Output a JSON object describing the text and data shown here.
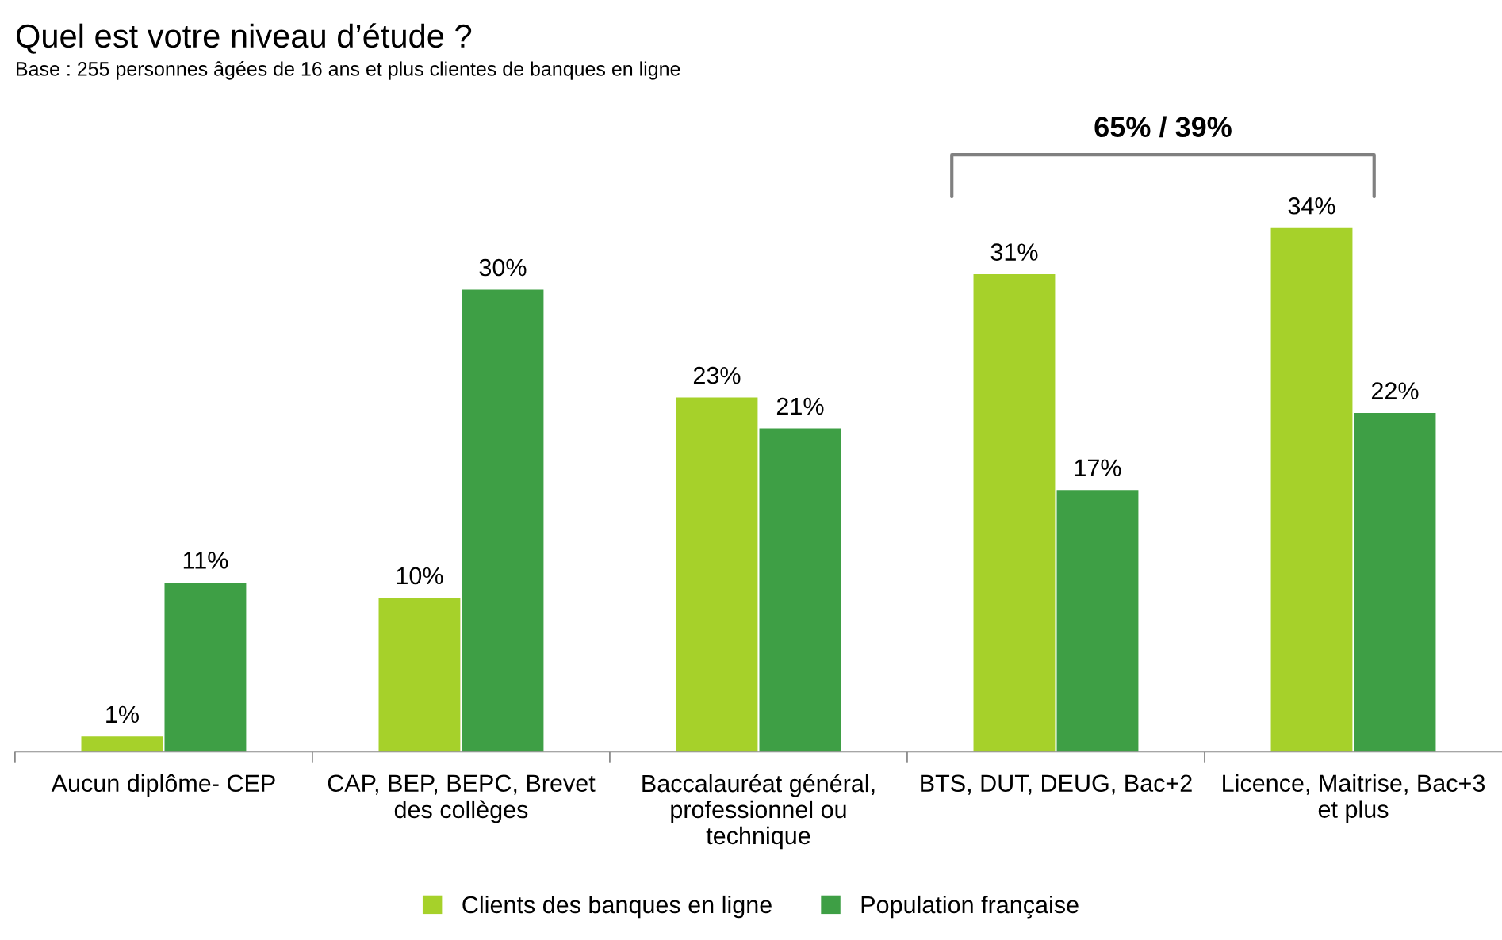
{
  "chart_data": {
    "type": "bar",
    "title": "Quel est votre niveau d’étude ?",
    "subtitle": "Base : 255 personnes âgées de 16 ans et plus clientes de banques en ligne",
    "categories": [
      "Aucun diplôme- CEP",
      "CAP, BEP, BEPC, Brevet\ndes collèges",
      "Baccalauréat général,\nprofessionnel ou\ntechnique",
      "BTS, DUT, DEUG, Bac+2",
      "Licence, Maitrise, Bac+3\net plus"
    ],
    "series": [
      {
        "name": "Clients des banques en ligne",
        "color": "#a6d12a",
        "values": [
          1,
          10,
          23,
          31,
          34
        ],
        "value_labels": [
          "1%",
          "10%",
          "23%",
          "31%",
          "34%"
        ]
      },
      {
        "name": "Population française",
        "color": "#3e9f45",
        "values": [
          11,
          30,
          21,
          17,
          22
        ],
        "value_labels": [
          "11%",
          "30%",
          "21%",
          "17%",
          "22%"
        ]
      }
    ],
    "legend": "bottom",
    "grid": false,
    "annotations": [
      "65% / 39%"
    ]
  }
}
